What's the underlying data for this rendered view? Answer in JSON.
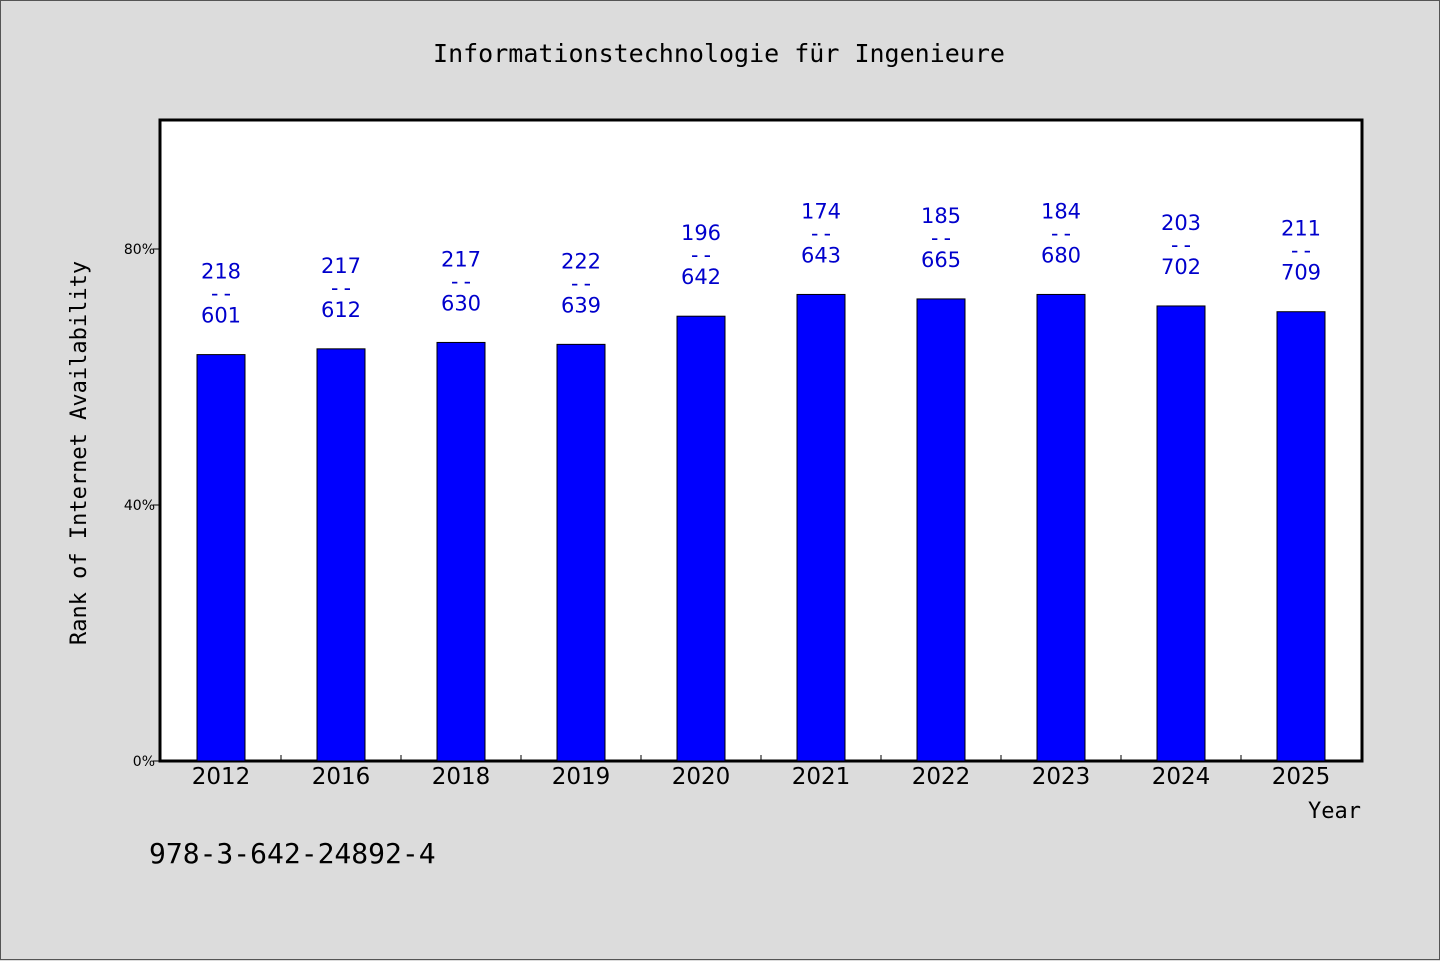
{
  "chart_data": {
    "type": "bar",
    "title": "Informationstechnologie für Ingenieure",
    "xlabel": "Year",
    "ylabel": "Rank of Internet Availability",
    "categories": [
      "2012",
      "2016",
      "2018",
      "2019",
      "2020",
      "2021",
      "2022",
      "2023",
      "2024",
      "2025"
    ],
    "series": [
      {
        "values": [
          0.635,
          0.644,
          0.654,
          0.651,
          0.695,
          0.729,
          0.722,
          0.729,
          0.711,
          0.702
        ],
        "numerators": [
          "218",
          "217",
          "217",
          "222",
          "196",
          "174",
          "185",
          "184",
          "203",
          "211"
        ],
        "denominators": [
          "601",
          "612",
          "630",
          "639",
          "642",
          "643",
          "665",
          "680",
          "702",
          "709"
        ]
      }
    ],
    "label_separator": "--",
    "ylim": [
      0,
      1
    ],
    "yticks": [
      {
        "value": 0,
        "label": "0%"
      },
      {
        "value": 0.4,
        "label": "40%"
      },
      {
        "value": 0.8,
        "label": "80%"
      }
    ],
    "grid": false,
    "bar_color": "#0000ff",
    "label_color": "#0000cc",
    "footer_text": "978-3-642-24892-4"
  }
}
